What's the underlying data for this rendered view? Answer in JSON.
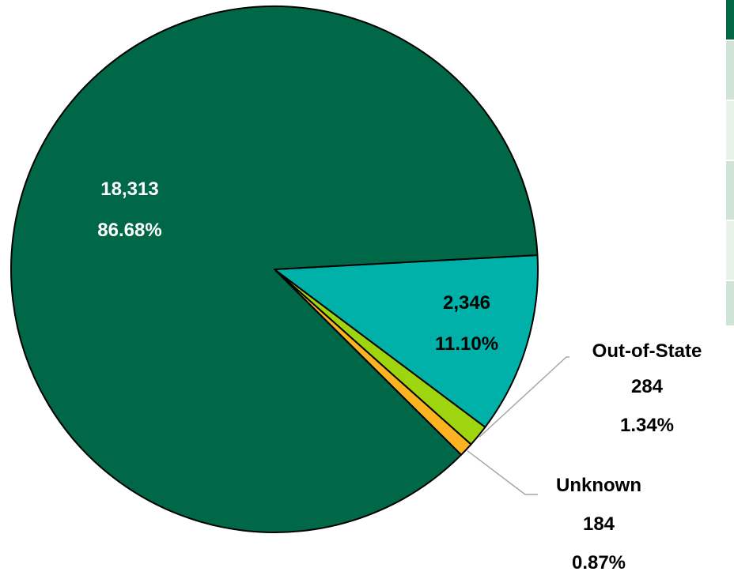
{
  "chart_data": {
    "type": "pie",
    "title": "",
    "slices": [
      {
        "value": 18313,
        "value_label": "18,313",
        "percent": 86.68,
        "percent_label": "86.68%",
        "category": "",
        "color": "#006847"
      },
      {
        "value": 2346,
        "value_label": "2,346",
        "percent": 11.1,
        "percent_label": "11.10%",
        "category": "",
        "color": "#00B1A9"
      },
      {
        "value": 284,
        "value_label": "284",
        "percent": 1.34,
        "percent_label": "1.34%",
        "category": "Out-of-State",
        "color": "#9ED50F"
      },
      {
        "value": 184,
        "value_label": "184",
        "percent": 0.87,
        "percent_label": "0.87%",
        "category": "Unknown",
        "color": "#FBB322"
      }
    ]
  },
  "colors": {
    "table_header": "#006847",
    "table_row_a": "#cfe3d6",
    "table_row_b": "#e8f1ea"
  }
}
